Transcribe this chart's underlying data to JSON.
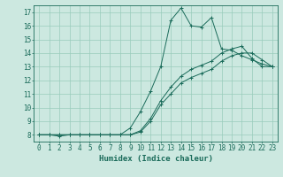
{
  "xlabel": "Humidex (Indice chaleur)",
  "bg_color": "#cce8e0",
  "line_color": "#1a6b5a",
  "grid_color": "#99ccbb",
  "xlim": [
    -0.5,
    23.5
  ],
  "ylim": [
    7.5,
    17.5
  ],
  "xticks": [
    0,
    1,
    2,
    3,
    4,
    5,
    6,
    7,
    8,
    9,
    10,
    11,
    12,
    13,
    14,
    15,
    16,
    17,
    18,
    19,
    20,
    21,
    22,
    23
  ],
  "yticks": [
    8,
    9,
    10,
    11,
    12,
    13,
    14,
    15,
    16,
    17
  ],
  "series1_x": [
    0,
    1,
    2,
    3,
    4,
    5,
    6,
    7,
    8,
    9,
    10,
    11,
    12,
    13,
    14,
    15,
    16,
    17,
    18,
    19,
    20,
    21,
    22,
    23
  ],
  "series1_y": [
    8.0,
    8.0,
    7.9,
    8.0,
    8.0,
    8.0,
    8.0,
    8.0,
    8.0,
    8.5,
    9.7,
    11.2,
    13.0,
    16.4,
    17.3,
    16.0,
    15.9,
    16.6,
    14.3,
    14.2,
    13.8,
    13.5,
    13.2,
    13.0
  ],
  "series2_x": [
    0,
    1,
    2,
    3,
    4,
    5,
    6,
    7,
    8,
    9,
    10,
    11,
    12,
    13,
    14,
    15,
    16,
    17,
    18,
    19,
    20,
    21,
    22,
    23
  ],
  "series2_y": [
    8.0,
    8.0,
    8.0,
    8.0,
    8.0,
    8.0,
    8.0,
    8.0,
    8.0,
    8.0,
    8.2,
    9.0,
    10.2,
    11.0,
    11.8,
    12.2,
    12.5,
    12.8,
    13.4,
    13.8,
    14.0,
    14.0,
    13.5,
    13.0
  ],
  "series3_x": [
    0,
    1,
    2,
    3,
    4,
    5,
    6,
    7,
    8,
    9,
    10,
    11,
    12,
    13,
    14,
    15,
    16,
    17,
    18,
    19,
    20,
    21,
    22,
    23
  ],
  "series3_y": [
    8.0,
    8.0,
    8.0,
    8.0,
    8.0,
    8.0,
    8.0,
    8.0,
    8.0,
    8.0,
    8.3,
    9.2,
    10.5,
    11.5,
    12.3,
    12.8,
    13.1,
    13.4,
    14.0,
    14.3,
    14.5,
    13.6,
    13.0,
    13.0
  ]
}
